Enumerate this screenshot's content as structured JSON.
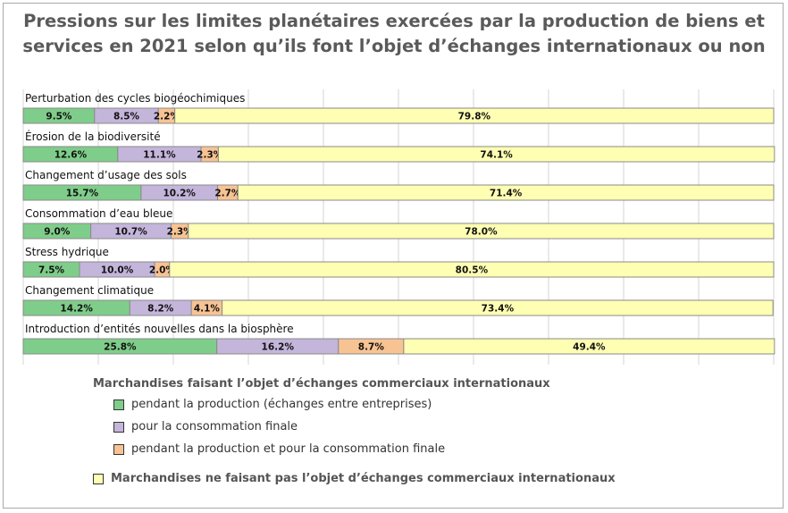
{
  "chart_data": {
    "type": "bar",
    "orientation": "horizontal-stacked",
    "title": "Pressions sur les limites planétaires exercées par la production de biens et services en 2021 selon qu’ils font l’objet d’échanges internationaux ou non",
    "categories": [
      "Perturbation des cycles biogéochimiques",
      "Érosion de la biodiversité",
      "Changement d’usage des sols",
      "Consommation d’eau bleue",
      "Stress hydrique",
      "Changement climatique",
      "Introduction d’entités nouvelles dans la biosphère"
    ],
    "series": [
      {
        "name": "pendant la production (échanges entre entreprises)",
        "color": "#7fcd8a",
        "values": [
          9.5,
          12.6,
          15.7,
          9.0,
          7.5,
          14.2,
          25.8
        ]
      },
      {
        "name": "pour la consommation finale",
        "color": "#c4b5db",
        "values": [
          8.5,
          11.1,
          10.2,
          10.7,
          10.0,
          8.2,
          16.2
        ]
      },
      {
        "name": "pendant la production et pour la consommation finale",
        "color": "#f8c393",
        "values": [
          2.2,
          2.3,
          2.7,
          2.3,
          2.0,
          4.1,
          8.7
        ]
      },
      {
        "name": "Marchandises ne faisant pas l’objet d’échanges commerciaux internationaux",
        "color": "#ffffb3",
        "values": [
          79.8,
          74.1,
          71.4,
          78.0,
          80.5,
          73.4,
          49.4
        ]
      }
    ],
    "xlim": [
      0,
      100
    ],
    "grid": true,
    "legend_position": "bottom"
  },
  "legend": {
    "heading": "Marchandises faisant l’objet d’échanges commerciaux internationaux"
  }
}
